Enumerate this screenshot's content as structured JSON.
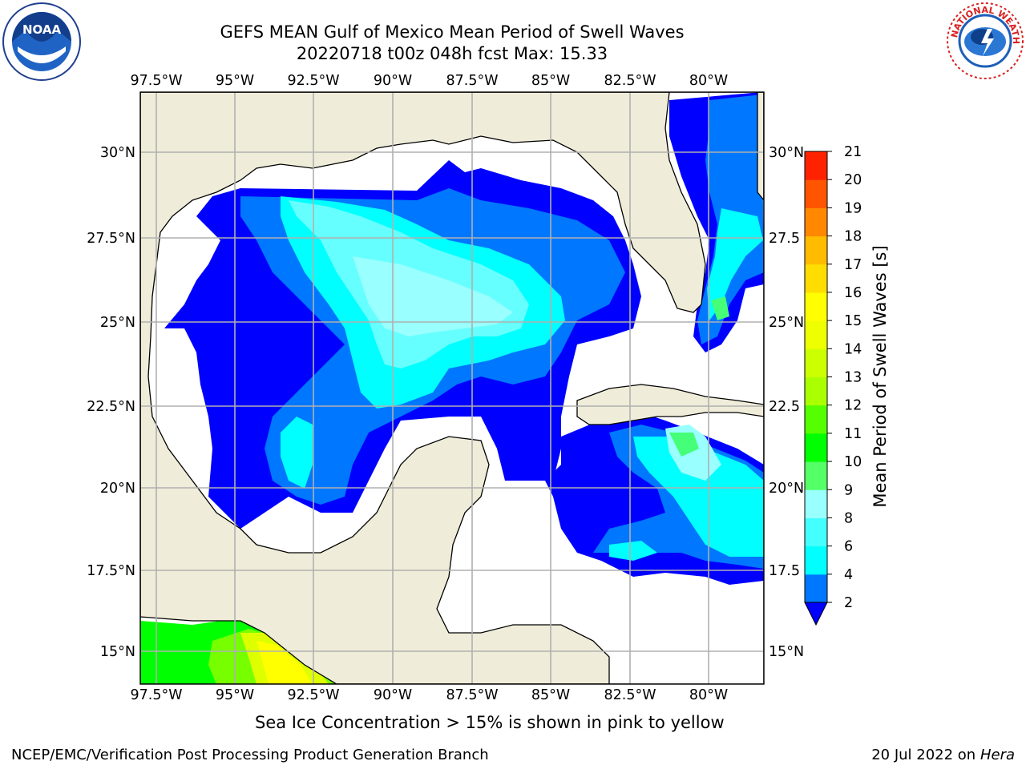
{
  "title": {
    "line1": "GEFS MEAN Gulf of Mexico Mean Period of Swell Waves",
    "line2": "20220718 t00z 048h fcst   Max: 15.33"
  },
  "logos": {
    "left": "NOAA",
    "left_ring_text": "NATIONAL OCEANIC AND ATMOSPHERIC ADMINISTRATION · U.S. DEPARTMENT OF COMMERCE",
    "right_ring_text": "NATIONAL WEATHER SERVICE"
  },
  "map": {
    "lon_labels": [
      "97.5°W",
      "95°W",
      "92.5°W",
      "90°W",
      "87.5°W",
      "85°W",
      "82.5°W",
      "80°W"
    ],
    "lat_labels_left": [
      "30°N",
      "27.5°N",
      "25°N",
      "22.5°N",
      "20°N",
      "17.5°N",
      "15°N"
    ],
    "lat_labels_right": [
      "30°N",
      "27.5",
      "25°N",
      "22.5",
      "20°N",
      "17.5",
      "15°N"
    ],
    "colors": {
      "land": "#efedd9",
      "ocean_missing": "#ffffff",
      "c2": "#0000ff",
      "c4": "#0077ff",
      "c6": "#00ffff",
      "c8": "#66ffff",
      "c9": "#99ffff",
      "c10": "#44ff77",
      "c12": "#77ff00",
      "c14": "#ddff00",
      "c15": "#ffff00"
    }
  },
  "colorbar": {
    "label": "Mean Period of Swell Waves [s]",
    "ticks": [
      "2",
      "4",
      "6",
      "8",
      "9",
      "10",
      "11",
      "12",
      "13",
      "14",
      "15",
      "16",
      "17",
      "18",
      "19",
      "20",
      "21"
    ],
    "colors": [
      "#0077ff",
      "#00ffff",
      "#44ffff",
      "#99ffff",
      "#55ff66",
      "#00ff00",
      "#55ff00",
      "#aaff00",
      "#ccff00",
      "#eeff00",
      "#ffff00",
      "#ffdd00",
      "#ffbb00",
      "#ff8800",
      "#ff5500",
      "#ff2200",
      "#ff0000"
    ],
    "extend_color": "#0000ff"
  },
  "caption": "Sea Ice Concentration > 15% is shown in pink to yellow",
  "footer": {
    "left": "NCEP/EMC/Verification Post Processing Product Generation Branch",
    "right_date": "20 Jul 2022 on ",
    "right_host": "Hera"
  }
}
